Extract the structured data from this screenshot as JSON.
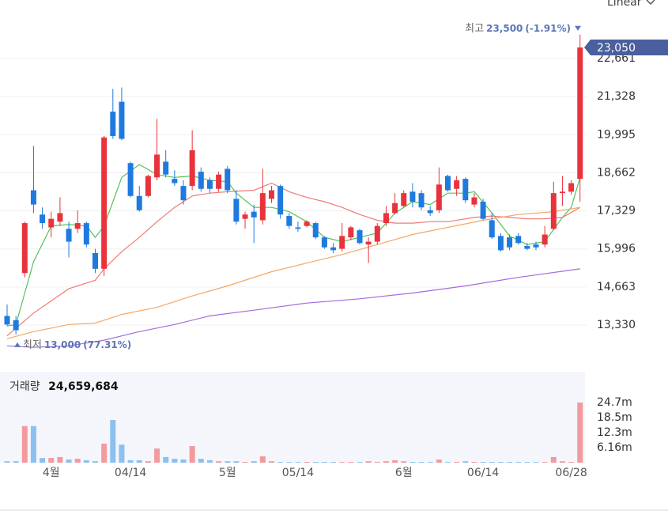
{
  "chart_data": {
    "type": "candlestick",
    "scale_mode": "Linear",
    "categories": [
      null,
      null,
      null,
      null,
      null,
      "4월",
      null,
      null,
      null,
      null,
      null,
      null,
      null,
      null,
      "04/14",
      null,
      null,
      null,
      null,
      null,
      null,
      null,
      null,
      null,
      null,
      "5월",
      null,
      null,
      null,
      null,
      null,
      null,
      null,
      "05/14",
      null,
      null,
      null,
      null,
      null,
      null,
      null,
      null,
      null,
      null,
      null,
      "6월",
      null,
      null,
      null,
      null,
      null,
      null,
      null,
      null,
      "06/14",
      null,
      null,
      null,
      null,
      null,
      null,
      null,
      null,
      null,
      "06/28",
      null
    ],
    "open": [
      13650,
      13500,
      15150,
      18050,
      17200,
      16750,
      16950,
      16700,
      16700,
      16900,
      15850,
      15300,
      20800,
      21150,
      19000,
      17850,
      17850,
      18500,
      19050,
      18450,
      18200,
      18200,
      18700,
      18400,
      18100,
      18800,
      17750,
      17050,
      17300,
      17000,
      17750,
      18200,
      17150,
      16750,
      16800,
      16900,
      16400,
      16050,
      16000,
      16400,
      16650,
      16150,
      16250,
      16900,
      17250,
      17500,
      18000,
      17950,
      17350,
      17350,
      18550,
      18100,
      18450,
      17550,
      17650,
      17000,
      16450,
      16400,
      16450,
      16100,
      16150,
      16150,
      16700,
      17950,
      18000,
      18450
    ],
    "high": [
      14050,
      13650,
      16950,
      19600,
      17450,
      17300,
      17800,
      16950,
      17350,
      16950,
      16000,
      19950,
      21600,
      21650,
      19050,
      18200,
      18600,
      20550,
      19450,
      18750,
      18400,
      20150,
      18850,
      18500,
      18700,
      18900,
      18050,
      17300,
      17550,
      18800,
      18200,
      18250,
      17250,
      16950,
      17000,
      16950,
      16450,
      16200,
      16900,
      16800,
      16700,
      16400,
      16900,
      17500,
      17950,
      18050,
      18300,
      18050,
      17500,
      18850,
      18600,
      18550,
      18500,
      17950,
      17750,
      17250,
      16550,
      16500,
      16550,
      16200,
      16250,
      16800,
      18350,
      18550,
      18400,
      23500
    ],
    "low": [
      13300,
      13000,
      15000,
      17250,
      16700,
      16400,
      16800,
      15700,
      16550,
      16050,
      15150,
      15050,
      19850,
      19800,
      17800,
      17300,
      17800,
      18400,
      18500,
      18200,
      17550,
      18050,
      18000,
      17950,
      18000,
      17950,
      16850,
      16700,
      16200,
      16850,
      17600,
      17050,
      16700,
      16600,
      16750,
      16350,
      16000,
      15850,
      15900,
      16300,
      16150,
      15500,
      16150,
      16800,
      17200,
      17450,
      17450,
      17350,
      17150,
      17250,
      18000,
      17850,
      17600,
      17450,
      17000,
      16350,
      15900,
      15950,
      16150,
      15950,
      15950,
      16050,
      16650,
      17500,
      17900,
      17650
    ],
    "close": [
      13350,
      13150,
      16900,
      17550,
      16900,
      17050,
      17250,
      16250,
      16900,
      16150,
      15300,
      19900,
      19950,
      19850,
      17850,
      17350,
      18550,
      19300,
      18600,
      18300,
      17700,
      19450,
      18100,
      18100,
      18600,
      18050,
      16950,
      17200,
      17100,
      17950,
      18050,
      17200,
      16800,
      16700,
      16950,
      16400,
      16050,
      15950,
      16450,
      16750,
      16200,
      16250,
      16800,
      17250,
      17600,
      17950,
      17650,
      17450,
      17250,
      18250,
      18050,
      18400,
      17700,
      17800,
      17050,
      16400,
      15950,
      16050,
      16200,
      16000,
      16050,
      16500,
      17950,
      18000,
      18300,
      23050
    ],
    "up_color": "#e8333c",
    "down_color": "#1f7ae0",
    "ylim": [
      12388,
      24712
    ],
    "yticks": [
      {
        "value": 13330,
        "label": "13,330"
      },
      {
        "value": 14663,
        "label": "14,663"
      },
      {
        "value": 15996,
        "label": "15,996"
      },
      {
        "value": 17329,
        "label": "17,329"
      },
      {
        "value": 18662,
        "label": "18,662"
      },
      {
        "value": 19995,
        "label": "19,995"
      },
      {
        "value": 21328,
        "label": "21,328"
      },
      {
        "value": 22661,
        "label": "22,661"
      }
    ],
    "grid": true,
    "lines": [
      {
        "color": "#55c25a",
        "x": [
          0,
          1,
          3,
          5,
          7,
          9,
          10,
          11,
          13,
          15,
          17,
          19,
          21,
          23,
          25,
          26,
          28,
          30,
          32,
          34,
          36,
          38,
          40,
          42,
          44,
          46,
          48,
          50,
          52,
          53,
          55,
          57,
          59,
          61,
          63,
          64,
          65
        ],
        "values": [
          13300,
          13350,
          15550,
          16800,
          16850,
          16800,
          16400,
          16800,
          18500,
          18950,
          18600,
          18500,
          18550,
          18400,
          18350,
          17950,
          17450,
          17450,
          17300,
          16950,
          16400,
          16250,
          16400,
          16550,
          17250,
          17650,
          17550,
          17950,
          17950,
          18000,
          17250,
          16450,
          16150,
          16250,
          17100,
          17450,
          18500
        ]
      },
      {
        "color": "#ee7b78",
        "x": [
          0,
          3,
          7,
          10,
          11,
          13,
          15,
          17,
          19,
          21,
          23,
          25,
          28,
          30,
          32,
          34,
          36,
          38,
          40,
          42,
          44,
          46,
          48,
          50,
          53,
          55,
          57,
          59,
          61,
          63,
          65
        ],
        "values": [
          12950,
          13750,
          14600,
          14900,
          15300,
          15900,
          16400,
          16950,
          17450,
          17850,
          17950,
          18000,
          18050,
          18300,
          18000,
          17800,
          17650,
          17450,
          17200,
          17000,
          16900,
          16900,
          16950,
          16950,
          17100,
          17150,
          17100,
          17050,
          17050,
          17100,
          17450
        ]
      },
      {
        "color": "#f5a766",
        "x": [
          0,
          3,
          7,
          10,
          13,
          17,
          21,
          25,
          30,
          34,
          38,
          42,
          46,
          50,
          54,
          58,
          62,
          65
        ],
        "values": [
          12850,
          13100,
          13350,
          13400,
          13700,
          13950,
          14350,
          14700,
          15200,
          15500,
          15800,
          16150,
          16500,
          16750,
          17000,
          17200,
          17300,
          17450
        ]
      },
      {
        "color": "#a66ae0",
        "x": [
          0,
          3,
          7,
          11,
          15,
          19,
          23,
          28,
          34,
          40,
          46,
          52,
          58,
          65
        ],
        "values": [
          12600,
          12550,
          12600,
          12800,
          13100,
          13350,
          13650,
          13850,
          14100,
          14250,
          14450,
          14700,
          15000,
          15300
        ]
      }
    ],
    "high_marker": {
      "label": "최고",
      "value": {
        "value": 23500,
        "label": "23,500"
      },
      "change": "(-1.91%)"
    },
    "low_marker": {
      "label": "최저",
      "value": {
        "value": 13000,
        "label": "13,000"
      },
      "change": "(77.31%)"
    },
    "current_price": {
      "value": 23050,
      "label": "23,050",
      "color": "#4a5f9e"
    },
    "volume": {
      "label": "거래량",
      "last": "24,659,684",
      "values": [
        600000,
        600000,
        15000000,
        15000000,
        1900000,
        1900000,
        2300000,
        1300000,
        1600000,
        1000000,
        600000,
        7800000,
        17500000,
        7400000,
        1000000,
        1000000,
        600000,
        5800000,
        2300000,
        1600000,
        1300000,
        6800000,
        1600000,
        1000000,
        600000,
        600000,
        600000,
        300000,
        600000,
        2600000,
        600000,
        300000,
        300000,
        300000,
        300000,
        300000,
        300000,
        300000,
        300000,
        300000,
        300000,
        600000,
        300000,
        600000,
        1000000,
        600000,
        300000,
        300000,
        300000,
        1300000,
        300000,
        300000,
        600000,
        300000,
        300000,
        300000,
        300000,
        300000,
        300000,
        300000,
        300000,
        300000,
        2300000,
        600000,
        300000,
        24659684
      ],
      "ylim": [
        0,
        37280000
      ],
      "yticks": [
        {
          "value": 6160000,
          "label": "6.16m"
        },
        {
          "value": 12300000,
          "label": "12.3m"
        },
        {
          "value": 18500000,
          "label": "18.5m"
        },
        {
          "value": 24700000,
          "label": "24.7m"
        }
      ],
      "up_color": "#f29a9e",
      "down_color": "#8cc0ef"
    }
  }
}
